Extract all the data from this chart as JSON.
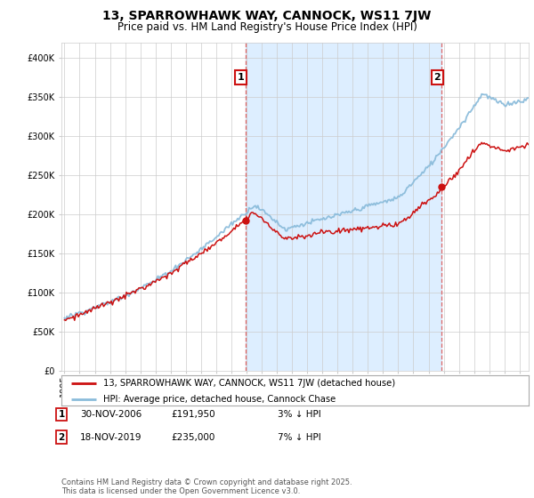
{
  "title": "13, SPARROWHAWK WAY, CANNOCK, WS11 7JW",
  "subtitle": "Price paid vs. HM Land Registry's House Price Index (HPI)",
  "legend_line1": "13, SPARROWHAWK WAY, CANNOCK, WS11 7JW (detached house)",
  "legend_line2": "HPI: Average price, detached house, Cannock Chase",
  "annotation1_date": "30-NOV-2006",
  "annotation1_price": "£191,950",
  "annotation1_hpi": "3% ↓ HPI",
  "annotation2_date": "18-NOV-2019",
  "annotation2_price": "£235,000",
  "annotation2_hpi": "7% ↓ HPI",
  "footnote": "Contains HM Land Registry data © Crown copyright and database right 2025.\nThis data is licensed under the Open Government Licence v3.0.",
  "hpi_color": "#8bbcdb",
  "price_color": "#cc1111",
  "dashed_color": "#dd6666",
  "shade_color": "#ddeeff",
  "background_color": "#ffffff",
  "grid_color": "#cccccc",
  "ylim": [
    0,
    420000
  ],
  "yticks": [
    0,
    50000,
    100000,
    150000,
    200000,
    250000,
    300000,
    350000,
    400000
  ],
  "sale1_year": 2006.917,
  "sale2_year": 2019.875,
  "sale1_price": 191950,
  "sale2_price": 235000,
  "xstart": 1995,
  "xend": 2025
}
